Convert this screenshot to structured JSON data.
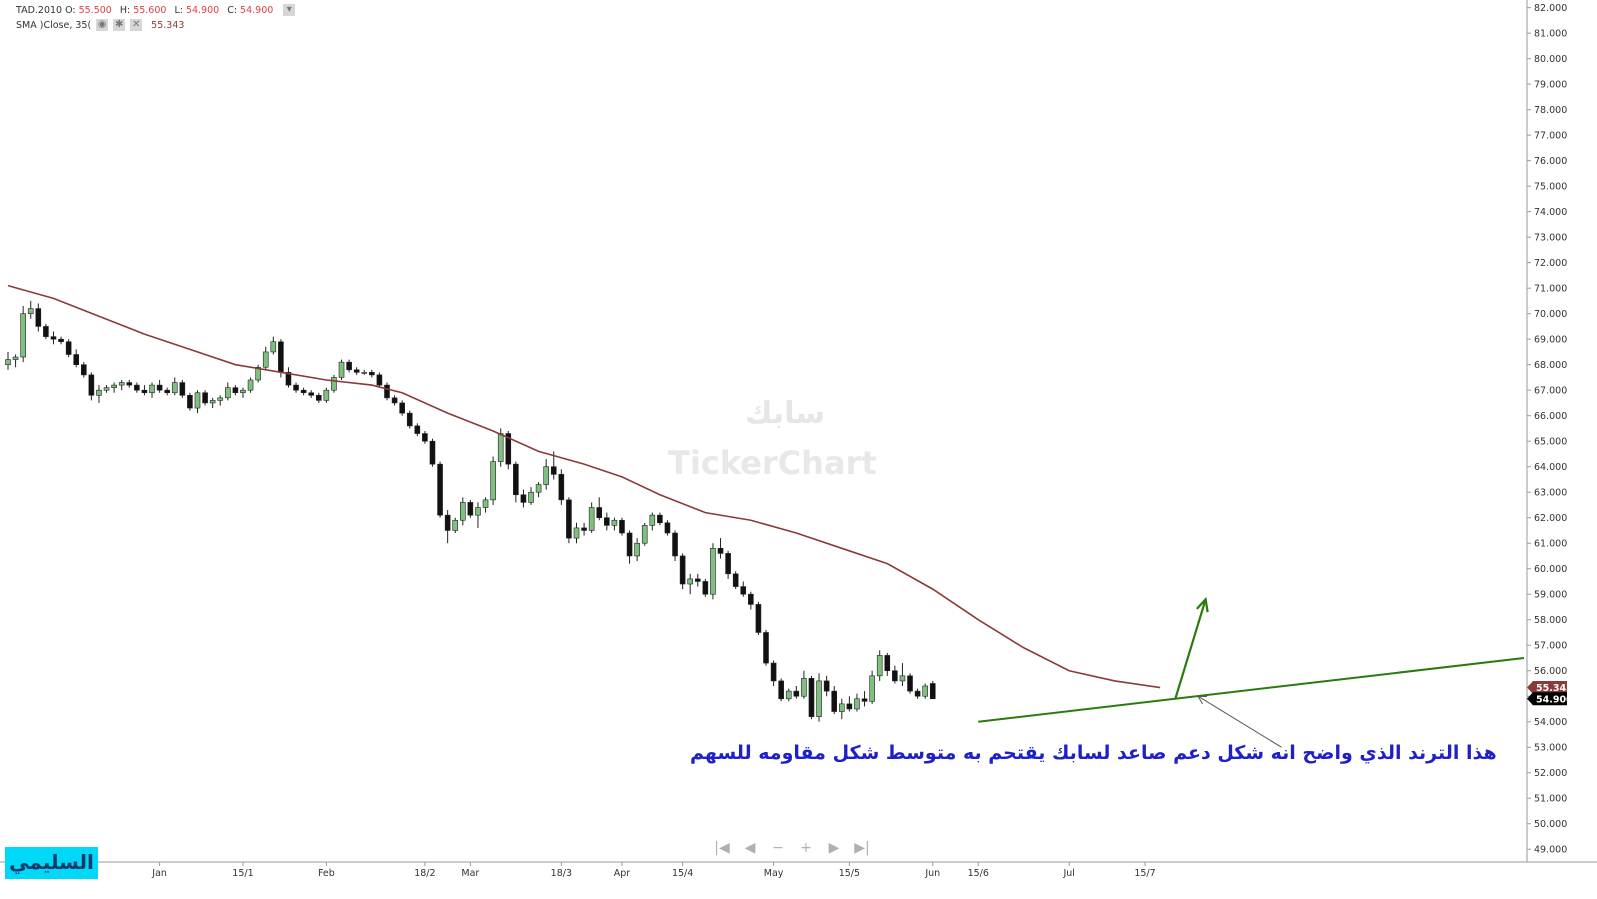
{
  "legend": {
    "symbol": "TAD.2010",
    "o_label": "O:",
    "o": "55.500",
    "h_label": "H:",
    "h": "55.600",
    "l_label": "L:",
    "l": "54.900",
    "c_label": "C:",
    "c": "54.900",
    "sma_label": "SMA )Close, 35(",
    "sma_value": "55.343",
    "icons": [
      "eye-icon",
      "gear-icon",
      "close-icon"
    ]
  },
  "watermark": {
    "arabic": "سابك",
    "brand": "TickerChart"
  },
  "annotation_text": "هذا الترند الذي واضح انه شكل دعم صاعد لسابك يقتحم به متوسط شكل مقاومه للسهم",
  "signature": "السليمي",
  "navigation": [
    "|◀",
    "◀",
    "−",
    "+",
    "▶",
    "▶|"
  ],
  "colors": {
    "up": "#7fbf7f",
    "down": "#111111",
    "sma": "#8b3a3a",
    "trendline": "#2a7a10",
    "annotation": "#2020c8",
    "signature_bg": "#00d8f8"
  },
  "chart_data": {
    "type": "candlestick",
    "ylim": [
      48.5,
      82.3
    ],
    "y_ticks": [
      "49.000",
      "50.000",
      "51.000",
      "52.000",
      "53.000",
      "54.000",
      "55.000",
      "56.000",
      "57.000",
      "58.000",
      "59.000",
      "60.000",
      "61.000",
      "62.000",
      "63.000",
      "64.000",
      "65.000",
      "66.000",
      "67.000",
      "68.000",
      "69.000",
      "70.000",
      "71.000",
      "72.000",
      "73.000",
      "74.000",
      "75.000",
      "76.000",
      "77.000",
      "78.000",
      "79.000",
      "80.000",
      "81.000",
      "82.000"
    ],
    "x_labels": [
      {
        "label": "Jan",
        "i": 20
      },
      {
        "label": "15/1",
        "i": 31
      },
      {
        "label": "Feb",
        "i": 42
      },
      {
        "label": "18/2",
        "i": 55
      },
      {
        "label": "Mar",
        "i": 61
      },
      {
        "label": "18/3",
        "i": 73
      },
      {
        "label": "Apr",
        "i": 81
      },
      {
        "label": "15/4",
        "i": 89
      },
      {
        "label": "May",
        "i": 101
      },
      {
        "label": "15/5",
        "i": 111
      },
      {
        "label": "Jun",
        "i": 122
      },
      {
        "label": "15/6",
        "i": 128
      },
      {
        "label": "Jul",
        "i": 140
      },
      {
        "label": "15/7",
        "i": 150
      }
    ],
    "n_slots": 205,
    "candles": [
      {
        "o": 68.0,
        "h": 68.5,
        "l": 67.8,
        "c": 68.2
      },
      {
        "o": 68.2,
        "h": 68.4,
        "l": 67.9,
        "c": 68.3
      },
      {
        "o": 68.3,
        "h": 70.3,
        "l": 68.1,
        "c": 70.0
      },
      {
        "o": 70.0,
        "h": 70.5,
        "l": 69.8,
        "c": 70.2
      },
      {
        "o": 70.2,
        "h": 70.4,
        "l": 69.3,
        "c": 69.5
      },
      {
        "o": 69.5,
        "h": 69.6,
        "l": 69.0,
        "c": 69.1
      },
      {
        "o": 69.1,
        "h": 69.3,
        "l": 68.8,
        "c": 69.0
      },
      {
        "o": 69.0,
        "h": 69.1,
        "l": 68.8,
        "c": 68.9
      },
      {
        "o": 68.9,
        "h": 69.0,
        "l": 68.3,
        "c": 68.4
      },
      {
        "o": 68.4,
        "h": 68.6,
        "l": 67.9,
        "c": 68.0
      },
      {
        "o": 68.0,
        "h": 68.1,
        "l": 67.5,
        "c": 67.6
      },
      {
        "o": 67.6,
        "h": 67.7,
        "l": 66.6,
        "c": 66.8
      },
      {
        "o": 66.8,
        "h": 67.2,
        "l": 66.5,
        "c": 67.0
      },
      {
        "o": 67.0,
        "h": 67.2,
        "l": 66.9,
        "c": 67.1
      },
      {
        "o": 67.1,
        "h": 67.3,
        "l": 66.9,
        "c": 67.2
      },
      {
        "o": 67.2,
        "h": 67.4,
        "l": 67.0,
        "c": 67.3
      },
      {
        "o": 67.3,
        "h": 67.4,
        "l": 67.1,
        "c": 67.2
      },
      {
        "o": 67.2,
        "h": 67.3,
        "l": 66.9,
        "c": 67.0
      },
      {
        "o": 67.0,
        "h": 67.2,
        "l": 66.8,
        "c": 66.9
      },
      {
        "o": 66.9,
        "h": 67.3,
        "l": 66.7,
        "c": 67.2
      },
      {
        "o": 67.2,
        "h": 67.4,
        "l": 66.9,
        "c": 67.0
      },
      {
        "o": 67.0,
        "h": 67.1,
        "l": 66.8,
        "c": 66.9
      },
      {
        "o": 66.9,
        "h": 67.5,
        "l": 66.8,
        "c": 67.3
      },
      {
        "o": 67.3,
        "h": 67.4,
        "l": 66.7,
        "c": 66.8
      },
      {
        "o": 66.8,
        "h": 66.9,
        "l": 66.2,
        "c": 66.3
      },
      {
        "o": 66.3,
        "h": 67.0,
        "l": 66.1,
        "c": 66.9
      },
      {
        "o": 66.9,
        "h": 67.0,
        "l": 66.4,
        "c": 66.5
      },
      {
        "o": 66.5,
        "h": 66.7,
        "l": 66.3,
        "c": 66.6
      },
      {
        "o": 66.6,
        "h": 66.8,
        "l": 66.4,
        "c": 66.7
      },
      {
        "o": 66.7,
        "h": 67.3,
        "l": 66.6,
        "c": 67.1
      },
      {
        "o": 67.1,
        "h": 67.2,
        "l": 66.8,
        "c": 66.9
      },
      {
        "o": 66.9,
        "h": 67.1,
        "l": 66.7,
        "c": 67.0
      },
      {
        "o": 67.0,
        "h": 67.5,
        "l": 66.9,
        "c": 67.4
      },
      {
        "o": 67.4,
        "h": 68.0,
        "l": 67.3,
        "c": 67.9
      },
      {
        "o": 67.9,
        "h": 68.7,
        "l": 67.8,
        "c": 68.5
      },
      {
        "o": 68.5,
        "h": 69.1,
        "l": 68.4,
        "c": 68.9
      },
      {
        "o": 68.9,
        "h": 69.0,
        "l": 67.5,
        "c": 67.7
      },
      {
        "o": 67.7,
        "h": 67.9,
        "l": 67.1,
        "c": 67.2
      },
      {
        "o": 67.2,
        "h": 67.3,
        "l": 66.9,
        "c": 67.0
      },
      {
        "o": 67.0,
        "h": 67.1,
        "l": 66.8,
        "c": 66.9
      },
      {
        "o": 66.9,
        "h": 67.0,
        "l": 66.7,
        "c": 66.8
      },
      {
        "o": 66.8,
        "h": 66.9,
        "l": 66.5,
        "c": 66.6
      },
      {
        "o": 66.6,
        "h": 67.1,
        "l": 66.5,
        "c": 67.0
      },
      {
        "o": 67.0,
        "h": 67.6,
        "l": 66.9,
        "c": 67.5
      },
      {
        "o": 67.5,
        "h": 68.2,
        "l": 67.4,
        "c": 68.1
      },
      {
        "o": 68.1,
        "h": 68.2,
        "l": 67.7,
        "c": 67.8
      },
      {
        "o": 67.8,
        "h": 67.9,
        "l": 67.6,
        "c": 67.7
      },
      {
        "o": 67.7,
        "h": 67.8,
        "l": 67.6,
        "c": 67.7
      },
      {
        "o": 67.7,
        "h": 67.8,
        "l": 67.5,
        "c": 67.6
      },
      {
        "o": 67.6,
        "h": 67.7,
        "l": 67.1,
        "c": 67.2
      },
      {
        "o": 67.2,
        "h": 67.3,
        "l": 66.6,
        "c": 66.7
      },
      {
        "o": 66.7,
        "h": 66.8,
        "l": 66.4,
        "c": 66.5
      },
      {
        "o": 66.5,
        "h": 66.6,
        "l": 66.0,
        "c": 66.1
      },
      {
        "o": 66.1,
        "h": 66.2,
        "l": 65.5,
        "c": 65.6
      },
      {
        "o": 65.6,
        "h": 65.7,
        "l": 65.2,
        "c": 65.3
      },
      {
        "o": 65.3,
        "h": 65.4,
        "l": 64.9,
        "c": 65.0
      },
      {
        "o": 65.0,
        "h": 65.1,
        "l": 64.0,
        "c": 64.1
      },
      {
        "o": 64.1,
        "h": 64.2,
        "l": 62.0,
        "c": 62.1
      },
      {
        "o": 62.1,
        "h": 62.3,
        "l": 61.0,
        "c": 61.5
      },
      {
        "o": 61.5,
        "h": 62.0,
        "l": 61.4,
        "c": 61.9
      },
      {
        "o": 61.9,
        "h": 62.8,
        "l": 61.7,
        "c": 62.6
      },
      {
        "o": 62.6,
        "h": 62.7,
        "l": 62.0,
        "c": 62.1
      },
      {
        "o": 62.1,
        "h": 62.6,
        "l": 61.6,
        "c": 62.4
      },
      {
        "o": 62.4,
        "h": 62.8,
        "l": 62.2,
        "c": 62.7
      },
      {
        "o": 62.7,
        "h": 64.4,
        "l": 62.5,
        "c": 64.2
      },
      {
        "o": 64.2,
        "h": 65.5,
        "l": 64.0,
        "c": 65.3
      },
      {
        "o": 65.3,
        "h": 65.4,
        "l": 63.9,
        "c": 64.1
      },
      {
        "o": 64.1,
        "h": 64.2,
        "l": 62.6,
        "c": 62.9
      },
      {
        "o": 62.9,
        "h": 63.1,
        "l": 62.4,
        "c": 62.6
      },
      {
        "o": 62.6,
        "h": 63.2,
        "l": 62.5,
        "c": 63.0
      },
      {
        "o": 63.0,
        "h": 63.4,
        "l": 62.8,
        "c": 63.3
      },
      {
        "o": 63.3,
        "h": 64.3,
        "l": 63.1,
        "c": 64.0
      },
      {
        "o": 64.0,
        "h": 64.6,
        "l": 63.5,
        "c": 63.7
      },
      {
        "o": 63.7,
        "h": 63.9,
        "l": 62.5,
        "c": 62.7
      },
      {
        "o": 62.7,
        "h": 62.8,
        "l": 61.0,
        "c": 61.2
      },
      {
        "o": 61.2,
        "h": 61.8,
        "l": 61.0,
        "c": 61.6
      },
      {
        "o": 61.6,
        "h": 61.8,
        "l": 61.3,
        "c": 61.5
      },
      {
        "o": 61.5,
        "h": 62.6,
        "l": 61.4,
        "c": 62.4
      },
      {
        "o": 62.4,
        "h": 62.8,
        "l": 61.9,
        "c": 62.0
      },
      {
        "o": 62.0,
        "h": 62.2,
        "l": 61.5,
        "c": 61.7
      },
      {
        "o": 61.7,
        "h": 62.0,
        "l": 61.5,
        "c": 61.9
      },
      {
        "o": 61.9,
        "h": 62.0,
        "l": 61.3,
        "c": 61.4
      },
      {
        "o": 61.4,
        "h": 61.5,
        "l": 60.2,
        "c": 60.5
      },
      {
        "o": 60.5,
        "h": 61.2,
        "l": 60.3,
        "c": 61.0
      },
      {
        "o": 61.0,
        "h": 61.8,
        "l": 60.9,
        "c": 61.7
      },
      {
        "o": 61.7,
        "h": 62.2,
        "l": 61.5,
        "c": 62.1
      },
      {
        "o": 62.1,
        "h": 62.2,
        "l": 61.7,
        "c": 61.8
      },
      {
        "o": 61.8,
        "h": 61.9,
        "l": 61.3,
        "c": 61.4
      },
      {
        "o": 61.4,
        "h": 61.5,
        "l": 60.3,
        "c": 60.5
      },
      {
        "o": 60.5,
        "h": 60.6,
        "l": 59.2,
        "c": 59.4
      },
      {
        "o": 59.4,
        "h": 59.8,
        "l": 59.0,
        "c": 59.6
      },
      {
        "o": 59.6,
        "h": 59.8,
        "l": 59.3,
        "c": 59.5
      },
      {
        "o": 59.5,
        "h": 59.6,
        "l": 58.9,
        "c": 59.0
      },
      {
        "o": 59.0,
        "h": 61.0,
        "l": 58.8,
        "c": 60.8
      },
      {
        "o": 60.8,
        "h": 61.2,
        "l": 60.4,
        "c": 60.6
      },
      {
        "o": 60.6,
        "h": 60.7,
        "l": 59.6,
        "c": 59.8
      },
      {
        "o": 59.8,
        "h": 59.9,
        "l": 59.2,
        "c": 59.3
      },
      {
        "o": 59.3,
        "h": 59.5,
        "l": 58.9,
        "c": 59.0
      },
      {
        "o": 59.0,
        "h": 59.1,
        "l": 58.4,
        "c": 58.6
      },
      {
        "o": 58.6,
        "h": 58.7,
        "l": 57.4,
        "c": 57.5
      },
      {
        "o": 57.5,
        "h": 57.6,
        "l": 56.2,
        "c": 56.3
      },
      {
        "o": 56.3,
        "h": 56.4,
        "l": 55.4,
        "c": 55.6
      },
      {
        "o": 55.6,
        "h": 55.7,
        "l": 54.8,
        "c": 54.9
      },
      {
        "o": 54.9,
        "h": 55.3,
        "l": 54.8,
        "c": 55.2
      },
      {
        "o": 55.2,
        "h": 55.4,
        "l": 54.9,
        "c": 55.0
      },
      {
        "o": 55.0,
        "h": 56.0,
        "l": 54.9,
        "c": 55.7
      },
      {
        "o": 55.7,
        "h": 55.8,
        "l": 54.1,
        "c": 54.2
      },
      {
        "o": 54.2,
        "h": 55.9,
        "l": 54.0,
        "c": 55.6
      },
      {
        "o": 55.6,
        "h": 55.8,
        "l": 55.0,
        "c": 55.2
      },
      {
        "o": 55.2,
        "h": 55.4,
        "l": 54.3,
        "c": 54.4
      },
      {
        "o": 54.4,
        "h": 54.9,
        "l": 54.1,
        "c": 54.7
      },
      {
        "o": 54.7,
        "h": 55.0,
        "l": 54.4,
        "c": 54.5
      },
      {
        "o": 54.5,
        "h": 55.1,
        "l": 54.4,
        "c": 54.9
      },
      {
        "o": 54.9,
        "h": 55.2,
        "l": 54.6,
        "c": 54.8
      },
      {
        "o": 54.8,
        "h": 56.0,
        "l": 54.7,
        "c": 55.8
      },
      {
        "o": 55.8,
        "h": 56.8,
        "l": 55.6,
        "c": 56.6
      },
      {
        "o": 56.6,
        "h": 56.7,
        "l": 55.8,
        "c": 56.0
      },
      {
        "o": 56.0,
        "h": 56.2,
        "l": 55.5,
        "c": 55.6
      },
      {
        "o": 55.6,
        "h": 56.3,
        "l": 55.4,
        "c": 55.8
      },
      {
        "o": 55.8,
        "h": 55.9,
        "l": 55.1,
        "c": 55.2
      },
      {
        "o": 55.2,
        "h": 55.3,
        "l": 54.9,
        "c": 55.0
      },
      {
        "o": 55.0,
        "h": 55.5,
        "l": 54.9,
        "c": 55.4
      },
      {
        "o": 55.5,
        "h": 55.6,
        "l": 54.9,
        "c": 54.9
      }
    ],
    "sma": [
      {
        "i": 0,
        "v": 71.1
      },
      {
        "i": 6,
        "v": 70.6
      },
      {
        "i": 12,
        "v": 69.9
      },
      {
        "i": 18,
        "v": 69.2
      },
      {
        "i": 24,
        "v": 68.6
      },
      {
        "i": 30,
        "v": 68.0
      },
      {
        "i": 36,
        "v": 67.7
      },
      {
        "i": 42,
        "v": 67.4
      },
      {
        "i": 48,
        "v": 67.2
      },
      {
        "i": 52,
        "v": 66.9
      },
      {
        "i": 58,
        "v": 66.1
      },
      {
        "i": 64,
        "v": 65.4
      },
      {
        "i": 70,
        "v": 64.6
      },
      {
        "i": 76,
        "v": 64.1
      },
      {
        "i": 81,
        "v": 63.6
      },
      {
        "i": 86,
        "v": 62.9
      },
      {
        "i": 92,
        "v": 62.2
      },
      {
        "i": 98,
        "v": 61.9
      },
      {
        "i": 104,
        "v": 61.4
      },
      {
        "i": 110,
        "v": 60.8
      },
      {
        "i": 116,
        "v": 60.2
      },
      {
        "i": 122,
        "v": 59.2
      },
      {
        "i": 128,
        "v": 58.0
      },
      {
        "i": 134,
        "v": 56.9
      },
      {
        "i": 140,
        "v": 56.0
      },
      {
        "i": 146,
        "v": 55.6
      },
      {
        "i": 152,
        "v": 55.34
      }
    ],
    "trendline": {
      "start": {
        "i": 128,
        "v": 54.0
      },
      "end": {
        "i": 200,
        "v": 56.5
      }
    },
    "arrow": {
      "from": {
        "i": 154,
        "v": 54.9
      },
      "to": {
        "i": 158,
        "v": 58.8
      }
    },
    "pointer": {
      "from": {
        "i": 168,
        "v": 53.0
      },
      "to": {
        "i": 157,
        "v": 55.0
      }
    },
    "price_tags": {
      "sma": "55.343",
      "last": "54.900"
    }
  }
}
